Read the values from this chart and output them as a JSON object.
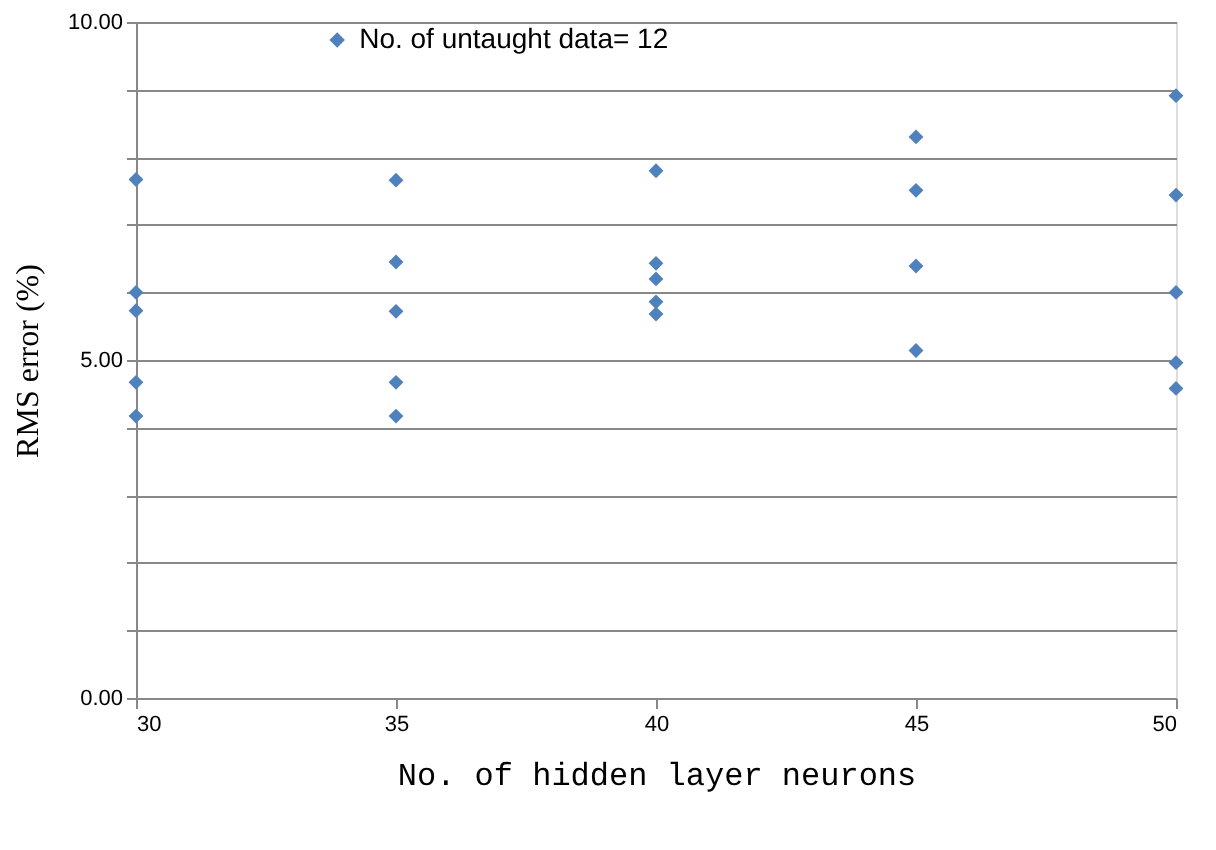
{
  "chart_data": {
    "type": "scatter",
    "xlabel": "No. of hidden layer neurons",
    "ylabel": "RMS error (%)",
    "series": [
      {
        "name": "No. of untaught data= 12",
        "color": "#4f81bd",
        "x": [
          30,
          30,
          30,
          30,
          30,
          35,
          35,
          35,
          35,
          35,
          40,
          40,
          40,
          40,
          40,
          45,
          45,
          45,
          45,
          50,
          50,
          50,
          50,
          50
        ],
        "values": [
          7.67,
          6.0,
          5.73,
          4.67,
          4.17,
          7.66,
          6.45,
          5.72,
          4.67,
          4.17,
          7.8,
          6.43,
          6.2,
          5.86,
          5.68,
          8.3,
          7.51,
          6.39,
          5.14,
          8.91,
          7.44,
          6.0,
          4.96,
          4.58
        ]
      }
    ],
    "xlim": [
      30,
      50
    ],
    "xticks": [
      30,
      35,
      40,
      45,
      50
    ],
    "ylim": [
      0,
      10
    ],
    "yticks": [
      {
        "value": 0,
        "label": "0.00"
      },
      {
        "value": 1,
        "label": null
      },
      {
        "value": 2,
        "label": null
      },
      {
        "value": 3,
        "label": null
      },
      {
        "value": 4,
        "label": null
      },
      {
        "value": 5,
        "label": "5.00"
      },
      {
        "value": 6,
        "label": null
      },
      {
        "value": 7,
        "label": null
      },
      {
        "value": 8,
        "label": null
      },
      {
        "value": 9,
        "label": null
      },
      {
        "value": 10,
        "label": "10.00"
      }
    ],
    "grid": "y",
    "legend": "top",
    "marker": "diamond"
  }
}
